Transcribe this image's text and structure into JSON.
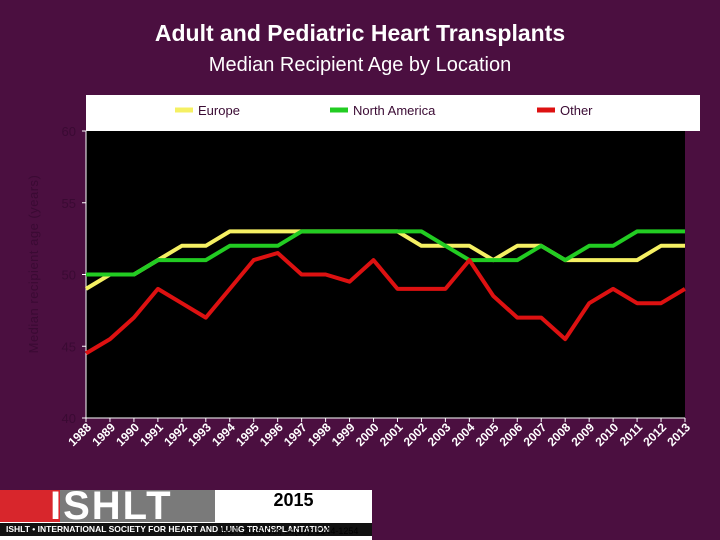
{
  "header": {
    "title": "Adult and Pediatric Heart Transplants",
    "subtitle": "Median Recipient Age by Location"
  },
  "chart_data": {
    "type": "line",
    "ylabel": "Median recipient age (years)",
    "ylim": [
      40,
      60
    ],
    "yticks": [
      40,
      45,
      50,
      55,
      60
    ],
    "categories": [
      "1988",
      "1989",
      "1990",
      "1991",
      "1992",
      "1993",
      "1994",
      "1995",
      "1996",
      "1997",
      "1998",
      "1999",
      "2000",
      "2001",
      "2002",
      "2003",
      "2004",
      "2005",
      "2006",
      "2007",
      "2008",
      "2009",
      "2010",
      "2011",
      "2012",
      "2013"
    ],
    "legend_position": "top",
    "series": [
      {
        "name": "Europe",
        "color": "#f5f063",
        "values": [
          49,
          50,
          50,
          51,
          52,
          52,
          53,
          53,
          53,
          53,
          53,
          53,
          53,
          53,
          52,
          52,
          52,
          51,
          52,
          52,
          51,
          51,
          51,
          51,
          52,
          52
        ]
      },
      {
        "name": "North America",
        "color": "#22cc22",
        "values": [
          50,
          50,
          50,
          51,
          51,
          51,
          52,
          52,
          52,
          53,
          53,
          53,
          53,
          53,
          53,
          52,
          51,
          51,
          51,
          52,
          51,
          52,
          52,
          53,
          53,
          53
        ]
      },
      {
        "name": "Other",
        "color": "#dd1111",
        "values": [
          44.5,
          45.5,
          47,
          49,
          48,
          47,
          49,
          51,
          51.5,
          50,
          50,
          49.5,
          51,
          49,
          49,
          49,
          51,
          48.5,
          47,
          47,
          45.5,
          48,
          49,
          48,
          48,
          49
        ]
      }
    ],
    "grid": false,
    "plot_background": "#000000"
  },
  "footer": {
    "logo_letters": "ISHLT",
    "tagline": "ISHLT • INTERNATIONAL SOCIETY FOR HEART AND LUNG TRANSPLANTATION",
    "year": "2015",
    "citation": "JHLT. 2015 Oct; 34(10): 1244-1254"
  },
  "colors": {
    "background": "#4b0f40",
    "plot": "#000000",
    "axis_panel": "#ffffff",
    "brand_red": "#d8262c"
  }
}
